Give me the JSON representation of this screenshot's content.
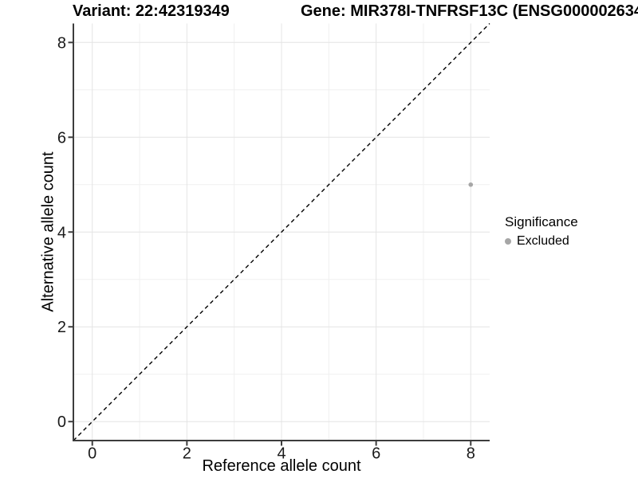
{
  "chart_data": {
    "type": "scatter",
    "titles": {
      "left": "Variant: 22:42319349",
      "right": "Gene: MIR378I-TNFRSF13C (ENSG000002634"
    },
    "xlabel": "Reference allele count",
    "ylabel": "Alternative allele count",
    "x_ticks": [
      0,
      2,
      4,
      6,
      8
    ],
    "y_ticks": [
      0,
      2,
      4,
      6,
      8
    ],
    "x_minor_ticks": [
      1,
      3,
      5,
      7
    ],
    "y_minor_ticks": [
      1,
      3,
      5,
      7
    ],
    "xlim": [
      -0.4,
      8.4
    ],
    "ylim": [
      -0.4,
      8.4
    ],
    "grid": {
      "on": true,
      "major_color": "#e4e4e4",
      "minor_color": "#f0f0f0"
    },
    "axis_color": "#3d3d3d",
    "tick_label_color": "#1a1a1a",
    "reference_line": {
      "type": "identity",
      "slope": 1,
      "intercept": 0,
      "style": "dashed",
      "color": "#000000"
    },
    "series": [
      {
        "name": "Excluded",
        "color": "#a6a6a6",
        "points": [
          {
            "x": 8,
            "y": 5
          }
        ]
      }
    ],
    "legend": {
      "position": "right",
      "title": "Significance",
      "items": [
        {
          "label": "Excluded",
          "color": "#a6a6a6"
        }
      ]
    }
  }
}
